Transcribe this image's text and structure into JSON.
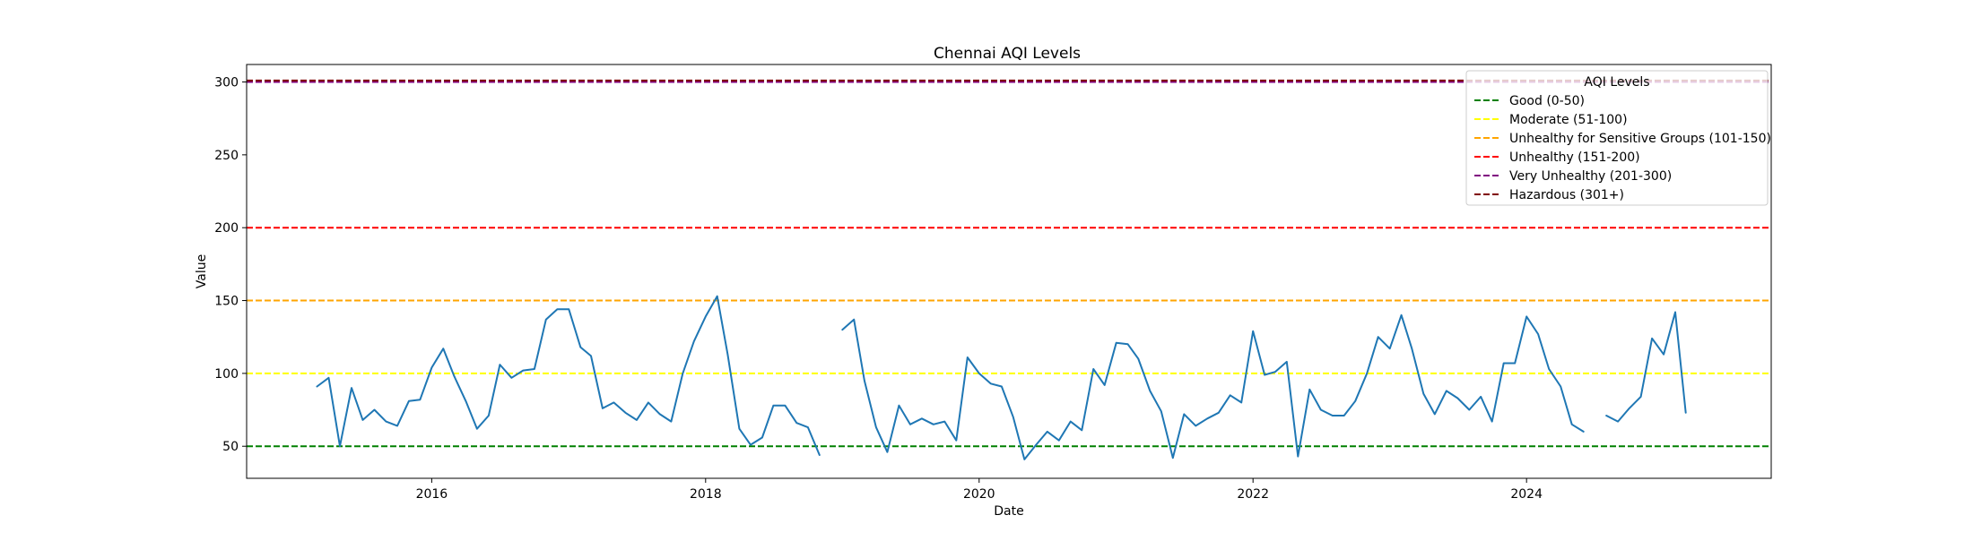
{
  "chart_data": {
    "type": "line",
    "title": "Chennai AQI Levels",
    "xlabel": "Date",
    "ylabel": "Value",
    "xlim": [
      "2014-08-25",
      "2025-10-15"
    ],
    "ylim": [
      28,
      312
    ],
    "x_ticks": [
      "2016",
      "2018",
      "2020",
      "2022",
      "2024"
    ],
    "y_ticks": [
      50,
      100,
      150,
      200,
      250,
      300
    ],
    "grid": false,
    "legend": {
      "title": "AQI Levels",
      "position": "top-right",
      "entries": [
        {
          "label": "Good (0-50)",
          "color": "#008000"
        },
        {
          "label": "Moderate (51-100)",
          "color": "#ffff00"
        },
        {
          "label": "Unhealthy for Sensitive Groups (101-150)",
          "color": "#ffa500"
        },
        {
          "label": "Unhealthy (151-200)",
          "color": "#ff0000"
        },
        {
          "label": "Very Unhealthy (201-300)",
          "color": "#800080"
        },
        {
          "label": "Hazardous (301+)",
          "color": "#800000"
        }
      ]
    },
    "threshold_lines": [
      {
        "label": "Good (0-50)",
        "y": 50,
        "color": "#008000"
      },
      {
        "label": "Moderate (51-100)",
        "y": 100,
        "color": "#ffff00"
      },
      {
        "label": "Unhealthy for Sensitive Groups (101-150)",
        "y": 150,
        "color": "#ffa500"
      },
      {
        "label": "Unhealthy (151-200)",
        "y": 200,
        "color": "#ff0000"
      },
      {
        "label": "Very Unhealthy (201-300)",
        "y": 300,
        "color": "#800080"
      },
      {
        "label": "Hazardous (301+)",
        "y": 301,
        "color": "#800000"
      }
    ],
    "series": [
      {
        "color": "#1f77b4",
        "x": [
          "2015-03",
          "2015-04",
          "2015-05",
          "2015-06",
          "2015-07",
          "2015-08",
          "2015-09",
          "2015-10",
          "2015-11",
          "2015-12",
          "2016-01",
          "2016-02",
          "2016-03",
          "2016-04",
          "2016-05",
          "2016-06",
          "2016-07",
          "2016-08",
          "2016-09",
          "2016-10",
          "2016-11",
          "2016-12",
          "2017-01",
          "2017-02",
          "2017-03",
          "2017-04",
          "2017-05",
          "2017-06",
          "2017-07",
          "2017-08",
          "2017-09",
          "2017-10",
          "2017-11",
          "2017-12",
          "2018-01",
          "2018-02",
          "2018-03",
          "2018-04",
          "2018-05",
          "2018-06",
          "2018-07",
          "2018-08",
          "2018-09",
          "2018-10",
          "2018-11",
          "2018-12",
          "2019-01",
          "2019-02",
          "2019-03",
          "2019-04",
          "2019-05",
          "2019-06",
          "2019-07",
          "2019-08",
          "2019-09",
          "2019-10",
          "2019-11",
          "2019-12",
          "2020-01",
          "2020-02",
          "2020-03",
          "2020-04",
          "2020-05",
          "2020-06",
          "2020-07",
          "2020-08",
          "2020-09",
          "2020-10",
          "2020-11",
          "2020-12",
          "2021-01",
          "2021-02",
          "2021-03",
          "2021-04",
          "2021-05",
          "2021-06",
          "2021-07",
          "2021-08",
          "2021-09",
          "2021-10",
          "2021-11",
          "2021-12",
          "2022-01",
          "2022-02",
          "2022-03",
          "2022-04",
          "2022-05",
          "2022-06",
          "2022-07",
          "2022-08",
          "2022-09",
          "2022-10",
          "2022-11",
          "2022-12",
          "2023-01",
          "2023-02",
          "2023-03",
          "2023-04",
          "2023-05",
          "2023-06",
          "2023-07",
          "2023-08",
          "2023-09",
          "2023-10",
          "2023-11",
          "2023-12",
          "2024-01",
          "2024-02",
          "2024-03",
          "2024-04",
          "2024-05",
          "2024-06",
          "2024-07",
          "2024-08",
          "2024-09",
          "2024-10",
          "2024-11",
          "2024-12",
          "2025-01",
          "2025-02",
          "2025-03"
        ],
        "y": [
          91,
          97,
          50,
          90,
          68,
          75,
          67,
          64,
          81,
          82,
          104,
          117,
          98,
          81,
          62,
          71,
          106,
          97,
          102,
          103,
          137,
          144,
          144,
          118,
          112,
          76,
          80,
          73,
          68,
          80,
          72,
          67,
          100,
          122,
          139,
          153,
          113,
          62,
          51,
          56,
          78,
          78,
          66,
          63,
          44,
          null,
          130,
          137,
          95,
          63,
          46,
          78,
          65,
          69,
          65,
          67,
          54,
          111,
          100,
          93,
          91,
          70,
          41,
          51,
          60,
          54,
          67,
          61,
          103,
          92,
          121,
          120,
          110,
          88,
          74,
          42,
          72,
          64,
          69,
          73,
          85,
          80,
          129,
          99,
          101,
          108,
          43,
          89,
          75,
          71,
          71,
          81,
          100,
          125,
          117,
          140,
          117,
          86,
          72,
          88,
          83,
          75,
          84,
          67,
          107,
          107,
          139,
          127,
          103,
          91,
          65,
          60,
          null,
          71,
          67,
          76,
          84,
          124,
          113,
          142,
          73
        ]
      }
    ]
  }
}
